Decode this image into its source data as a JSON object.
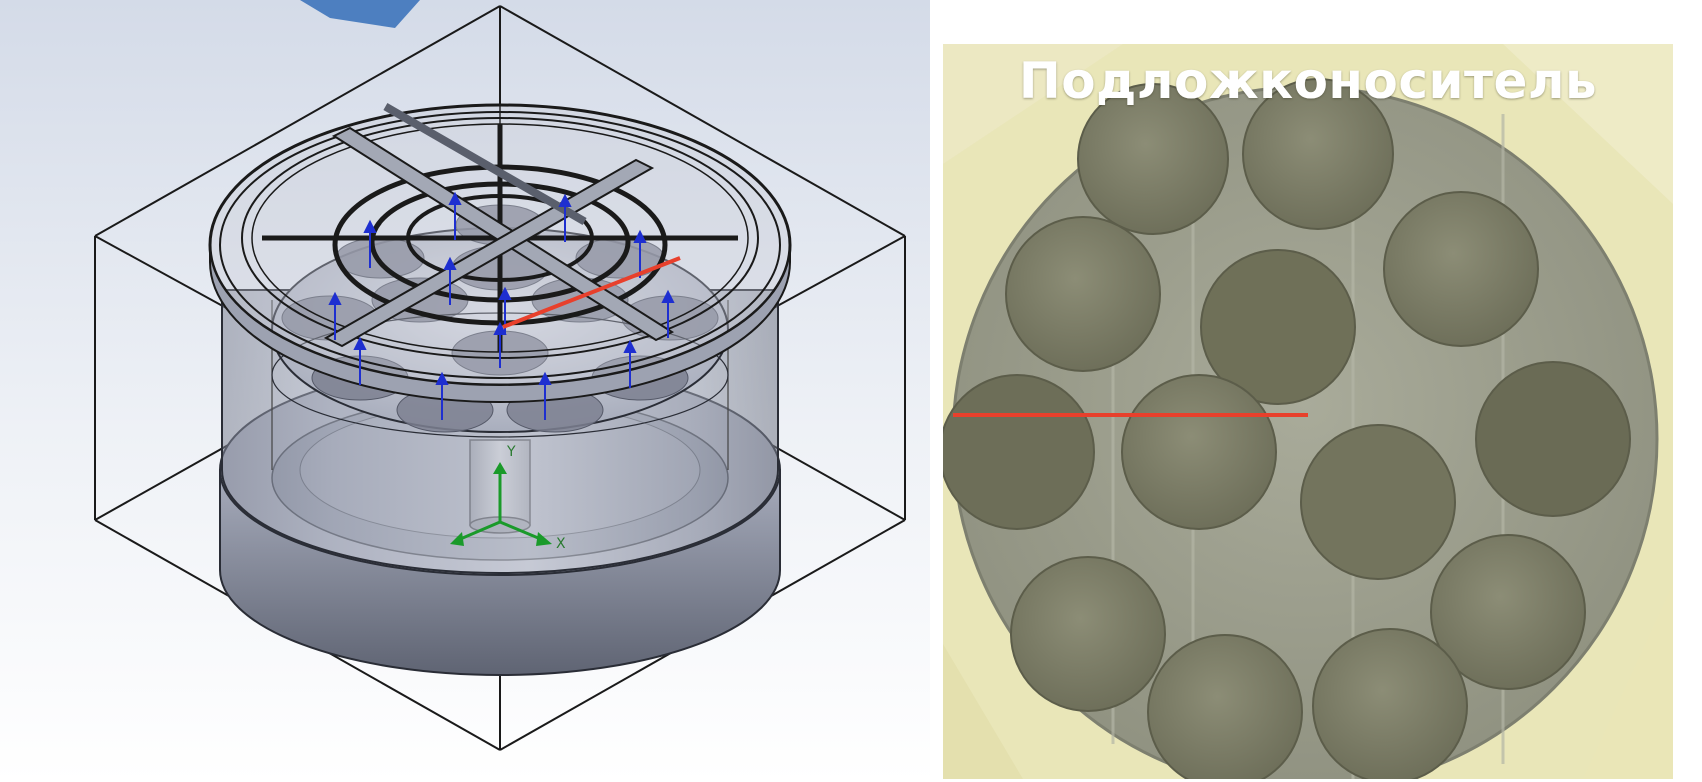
{
  "photo": {
    "title": "Подложконоситель",
    "wafer_count": 13
  },
  "cad": {
    "axis_labels": {
      "y": "Y",
      "x": "X"
    }
  },
  "colors": {
    "annotation_line": "#e8402c",
    "cad_arrow": "#1e2fd0",
    "photo_background": "#e9e6b8",
    "carrier_disc": "#9ea08f",
    "wafer": "#7e7f68"
  }
}
